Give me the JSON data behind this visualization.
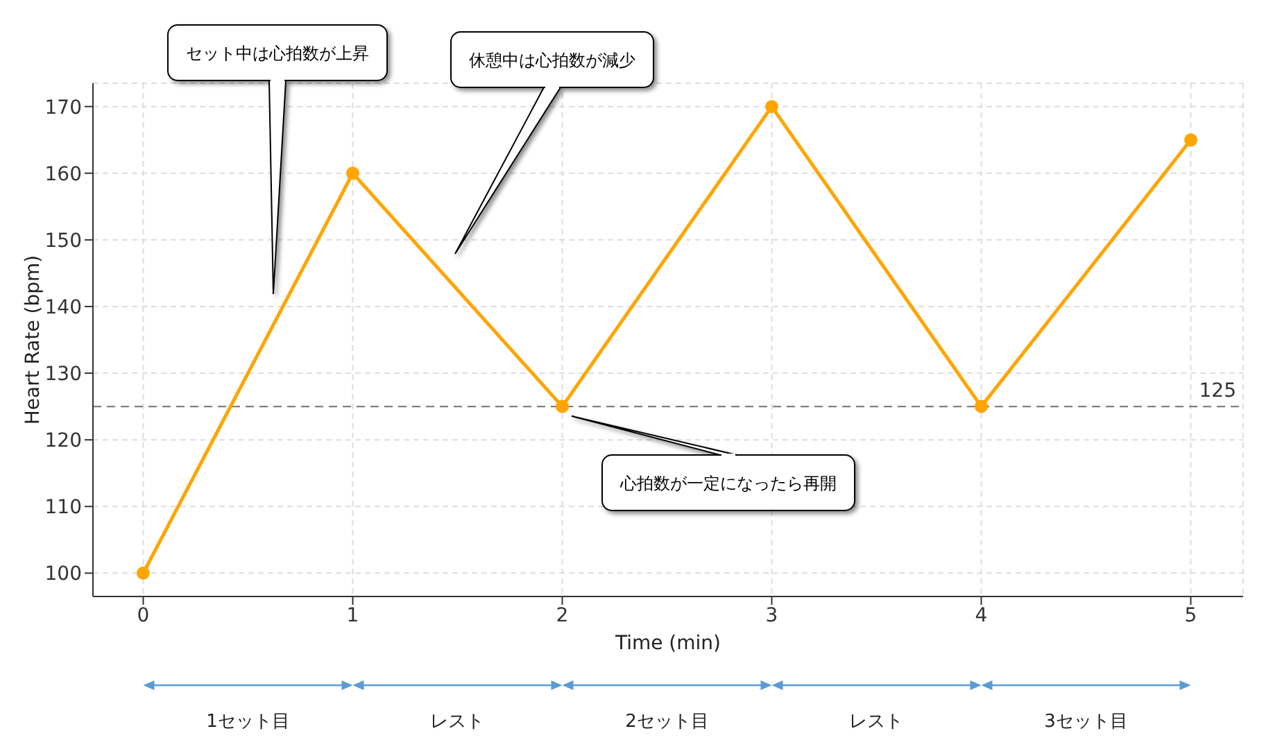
{
  "chart_data": {
    "type": "line",
    "xlabel": "Time (min)",
    "ylabel": "Heart Rate (bpm)",
    "x": [
      0,
      1,
      2,
      3,
      4,
      5
    ],
    "series": [
      {
        "color": "#ffa500",
        "values": [
          100,
          160,
          125,
          170,
          125,
          165
        ]
      }
    ],
    "xlim": [
      -0.24,
      5.25
    ],
    "ylim": [
      96.5,
      173.5
    ],
    "xticks": [
      0,
      1,
      2,
      3,
      4,
      5
    ],
    "yticks": [
      100,
      110,
      120,
      130,
      140,
      150,
      160,
      170
    ],
    "grid": true,
    "marker": "circle",
    "line_style": "solid",
    "ref_lines": [
      {
        "axis": "y",
        "value": 125,
        "label": "125",
        "color": "#808080",
        "line_style": "dashed"
      }
    ],
    "annotations": [
      "セット中は心拍数が上昇",
      "休憩中は心拍数が減少",
      "心拍数が一定になったら再開",
      "1セット目",
      "レスト",
      "2セット目",
      "レスト",
      "3セット目"
    ]
  }
}
